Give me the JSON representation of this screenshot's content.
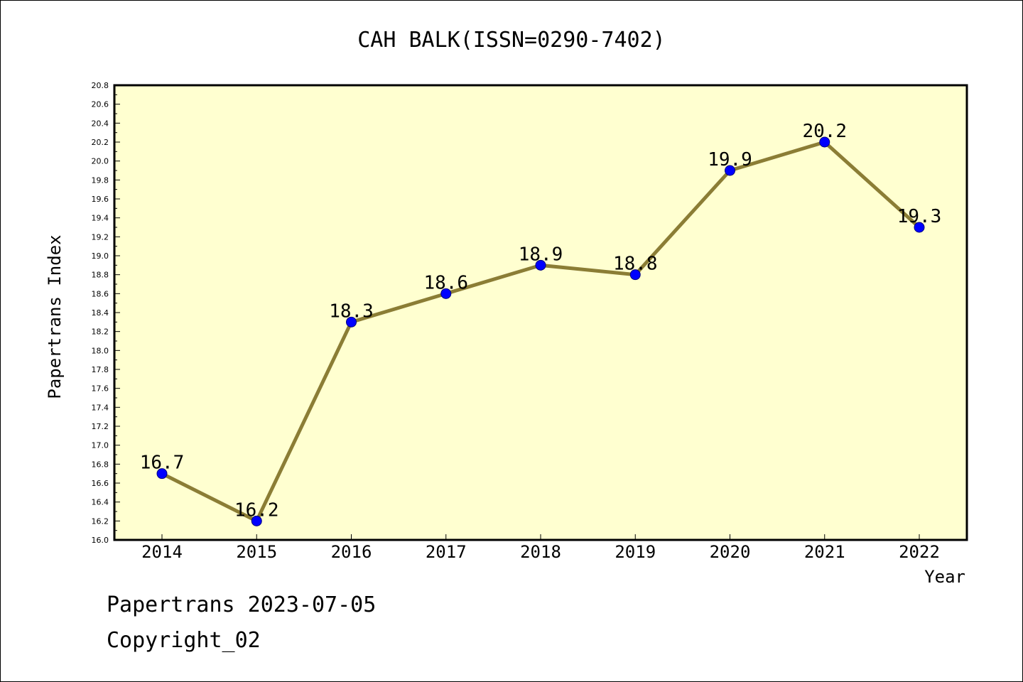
{
  "colors": {
    "plot_background": "#ffffd0",
    "line": "#8b7d35",
    "marker": "#0000ff",
    "marker_edge": "#000080"
  },
  "chart_data": {
    "type": "line",
    "title": "CAH BALK(ISSN=0290-7402)",
    "xlabel": "Year",
    "ylabel": "Papertrans Index",
    "categories": [
      "2014",
      "2015",
      "2016",
      "2017",
      "2018",
      "2019",
      "2020",
      "2021",
      "2022"
    ],
    "series": [
      {
        "values": [
          16.7,
          16.2,
          18.3,
          18.6,
          18.9,
          18.8,
          19.9,
          20.2,
          19.3
        ],
        "data_labels": [
          "16.7",
          "16.2",
          "18.3",
          "18.6",
          "18.9",
          "18.8",
          "19.9",
          "20.2",
          "19.3"
        ]
      }
    ],
    "ylim": [
      16.0,
      20.8
    ],
    "yticks": [
      "16.0",
      "16.2",
      "16.4",
      "16.6",
      "16.8",
      "17.0",
      "17.2",
      "17.4",
      "17.6",
      "17.8",
      "18.0",
      "18.2",
      "18.4",
      "18.6",
      "18.8",
      "19.0",
      "19.2",
      "19.4",
      "19.6",
      "19.8",
      "20.0",
      "20.2",
      "20.4",
      "20.6",
      "20.8"
    ],
    "grid": false,
    "legend": "none"
  },
  "footer": {
    "line1": "Papertrans 2023-07-05",
    "line2": "Copyright_02"
  }
}
